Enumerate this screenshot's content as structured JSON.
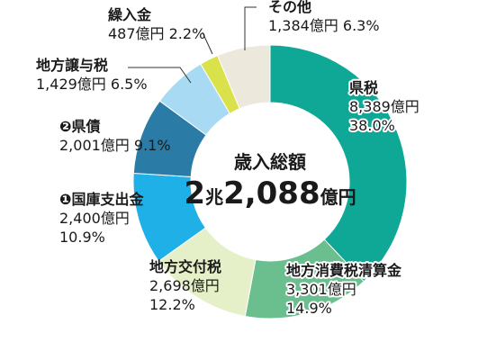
{
  "chart_data": {
    "type": "pie",
    "donut": true,
    "center_title": "歳入総額",
    "center_total": {
      "a": "2",
      "b": "兆",
      "c": "2,088",
      "d": "億円"
    },
    "unit": "億円",
    "slices": [
      {
        "name": "県税",
        "value": 8389,
        "value_text": "8,389億円",
        "pct_text": "38.0%",
        "color": "#0fa896"
      },
      {
        "name": "地方消費税清算金",
        "value": 3301,
        "value_text": "3,301億円",
        "pct_text": "14.9%",
        "color": "#6bbf8f"
      },
      {
        "name": "地方交付税",
        "value": 2698,
        "value_text": "2,698億円",
        "pct_text": "12.2%",
        "color": "#e6f0c8"
      },
      {
        "name": "❶国庫支出金",
        "value": 2400,
        "value_text": "2,400億円",
        "pct_text": "10.9%",
        "color": "#1eb0e6"
      },
      {
        "name": "❷県債",
        "value": 2001,
        "value_text": "2,001億円",
        "pct_text": "9.1%",
        "color": "#2a7ba6"
      },
      {
        "name": "地方譲与税",
        "value": 1429,
        "value_text": "1,429億円",
        "pct_text": "6.5%",
        "color": "#a8daf4"
      },
      {
        "name": "繰入金",
        "value": 487,
        "value_text": "487億円",
        "pct_text": "2.2%",
        "color": "#d9e24a"
      },
      {
        "name": "その他",
        "value": 1384,
        "value_text": "1,384億円",
        "pct_text": "6.3%",
        "color": "#ede8dc"
      }
    ]
  }
}
